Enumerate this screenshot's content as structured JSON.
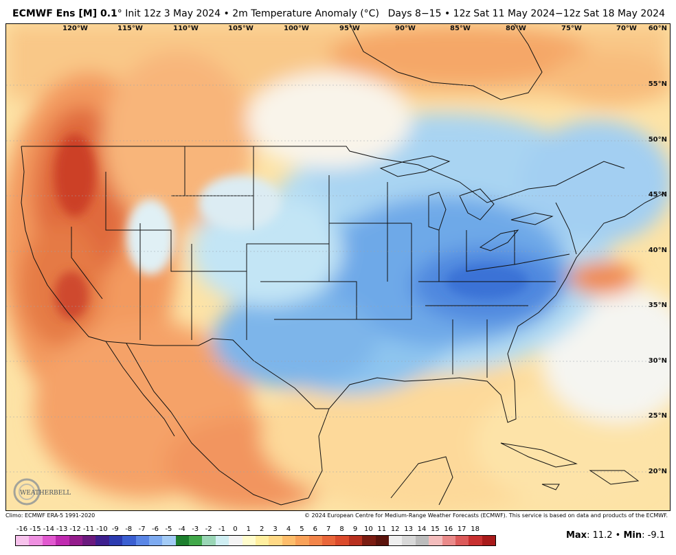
{
  "header": {
    "model": "ECMWF Ens [M] 0.1",
    "init": "° Init 12z 3 May 2024 • 2m Temperature Anomaly (°C)",
    "valid": "Days 8−15 • 12z Sat 11 May 2024−12z Sat 18 May 2024"
  },
  "map": {
    "lon_labels": [
      "120°W",
      "115°W",
      "110°W",
      "105°W",
      "100°W",
      "95°W",
      "90°W",
      "85°W",
      "80°W",
      "75°W",
      "70°W"
    ],
    "lat_labels": [
      "60°N",
      "55°N",
      "50°N",
      "45°N",
      "40°N",
      "35°N",
      "30°N",
      "25°N",
      "20°N"
    ],
    "logo_text": "WEATHERBELL",
    "colors": {
      "warm_light": "#ffe9a0",
      "warm_mid": "#fbbf72",
      "warm_strong": "#f08a4e",
      "hot": "#d2462d",
      "neutral": "#f6f6f6",
      "cool_light": "#bfe3f5",
      "cool_mid": "#8ec7ef",
      "cool_strong": "#5b9de6",
      "cold": "#3a72d6"
    }
  },
  "footer": {
    "climo": "Climo: ECMWF ERA-5 1991-2020",
    "copyright": "© 2024 European Centre for Medium-Range Weather Forecasts (ECMWF). This service is based on data and products of the ECMWF."
  },
  "colorbar": {
    "ticks": [
      "-16",
      "-15",
      "-14",
      "-13",
      "-12",
      "-11",
      "-10",
      "-9",
      "-8",
      "-7",
      "-6",
      "-5",
      "-4",
      "-3",
      "-2",
      "-1",
      "0",
      "1",
      "2",
      "3",
      "4",
      "5",
      "6",
      "7",
      "8",
      "9",
      "10",
      "11",
      "12",
      "13",
      "14",
      "15",
      "16",
      "17",
      "18"
    ],
    "colors": [
      "#f7c2ec",
      "#ee8fe0",
      "#e158cf",
      "#c02ab0",
      "#941c8c",
      "#6b1a7e",
      "#3e1f8e",
      "#2c3bb0",
      "#3b5fd1",
      "#5a86e6",
      "#7daaf0",
      "#a3cbf6",
      "#1d7f2e",
      "#41a84a",
      "#9ad6b6",
      "#cfeef2",
      "#f4f4f4",
      "#fffccc",
      "#ffef9f",
      "#ffd986",
      "#fdbd6b",
      "#f9a259",
      "#f3854a",
      "#e9663a",
      "#db4b2c",
      "#b8301f",
      "#7a1c12",
      "#5a130c",
      "#eeeeee",
      "#d8d8d8",
      "#bcbcbc",
      "#f3bcbc",
      "#ea8a8a",
      "#dc5a5a",
      "#c83030",
      "#a81a1a"
    ]
  },
  "stats": {
    "max_label": "Max",
    "max_value": ": 11.2 • ",
    "min_label": "Min",
    "min_value": ": -9.1"
  }
}
